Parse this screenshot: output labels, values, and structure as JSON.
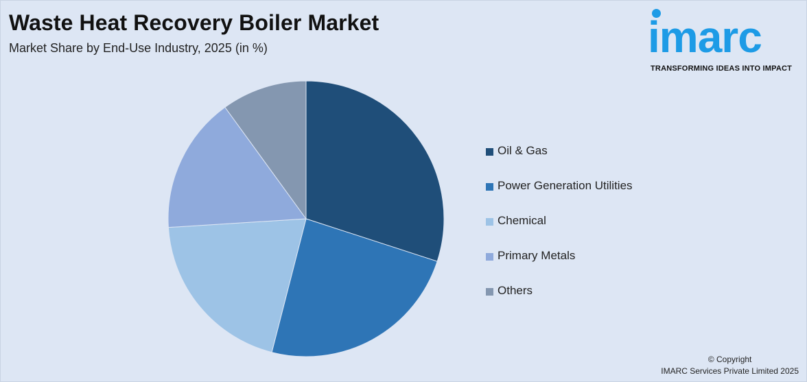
{
  "header": {
    "title": "Waste Heat Recovery Boiler Market",
    "subtitle": "Market Share by End-Use Industry, 2025 (in %)"
  },
  "logo": {
    "wordmark": "imarc",
    "tagline": "TRANSFORMING IDEAS INTO IMPACT",
    "color": "#1d9be6"
  },
  "chart_data": {
    "type": "pie",
    "title": "Waste Heat Recovery Boiler Market",
    "subtitle": "Market Share by End-Use Industry, 2025 (in %)",
    "legend_position": "right",
    "start_angle": "12 o'clock",
    "direction": "clockwise",
    "slices": [
      {
        "label": "Oil & Gas",
        "value": 30,
        "color": "#1f4e79"
      },
      {
        "label": "Power Generation Utilities",
        "value": 24,
        "color": "#2e75b6"
      },
      {
        "label": "Chemical",
        "value": 20,
        "color": "#9dc3e6"
      },
      {
        "label": "Primary Metals",
        "value": 16,
        "color": "#8faadc"
      },
      {
        "label": "Others",
        "value": 10,
        "color": "#8497b0"
      }
    ]
  },
  "footer": {
    "copyright_line1": "© Copyright",
    "copyright_line2": "IMARC Services Private Limited 2025"
  }
}
